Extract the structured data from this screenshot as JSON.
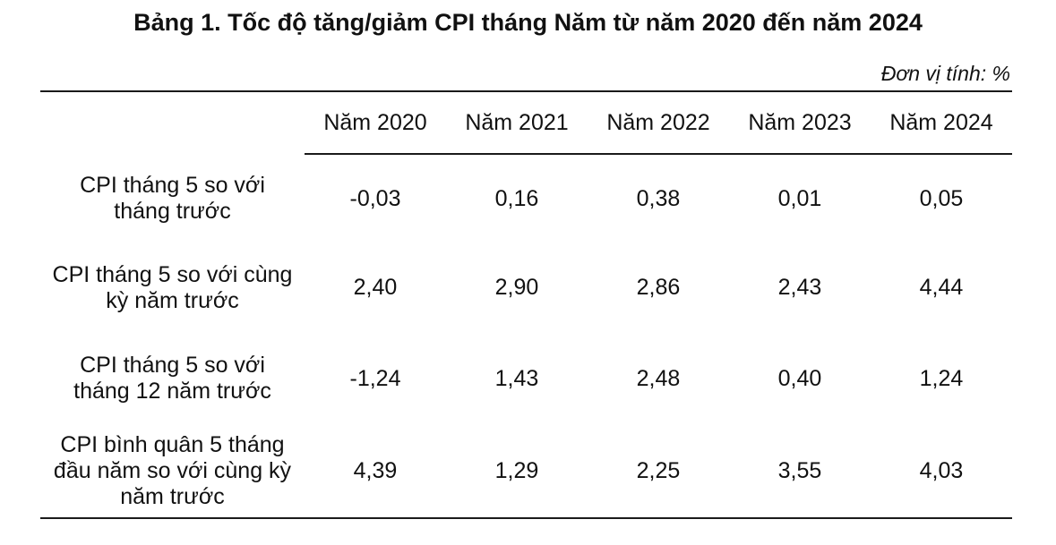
{
  "title": "Bảng 1. Tốc độ tăng/giảm CPI tháng Năm từ năm 2020 đến năm 2024",
  "unit_note": "Đơn vị tính: %",
  "colors": {
    "background": "#ffffff",
    "text": "#111111",
    "rule": "#1a1a1a"
  },
  "table": {
    "column_headers": [
      "Năm 2020",
      "Năm 2021",
      "Năm 2022",
      "Năm 2023",
      "Năm 2024"
    ],
    "rows": [
      {
        "label": "CPI tháng 5 so với tháng trước",
        "values": [
          "-0,03",
          "0,16",
          "0,38",
          "0,01",
          "0,05"
        ]
      },
      {
        "label": "CPI tháng 5 so với cùng kỳ năm trước",
        "values": [
          "2,40",
          "2,90",
          "2,86",
          "2,43",
          "4,44"
        ]
      },
      {
        "label": "CPI tháng 5 so với tháng 12 năm trước",
        "values": [
          "-1,24",
          "1,43",
          "2,48",
          "0,40",
          "1,24"
        ]
      },
      {
        "label": "CPI bình quân 5 tháng đầu năm so với cùng kỳ năm trước",
        "values": [
          "4,39",
          "1,29",
          "2,25",
          "3,55",
          "4,03"
        ]
      }
    ]
  },
  "chart_data": {
    "type": "table",
    "title": "Bảng 1. Tốc độ tăng/giảm CPI tháng Năm từ năm 2020 đến năm 2024",
    "unit": "%",
    "categories": [
      "Năm 2020",
      "Năm 2021",
      "Năm 2022",
      "Năm 2023",
      "Năm 2024"
    ],
    "series": [
      {
        "name": "CPI tháng 5 so với tháng trước",
        "values": [
          -0.03,
          0.16,
          0.38,
          0.01,
          0.05
        ]
      },
      {
        "name": "CPI tháng 5 so với cùng kỳ năm trước",
        "values": [
          2.4,
          2.9,
          2.86,
          2.43,
          4.44
        ]
      },
      {
        "name": "CPI tháng 5 so với tháng 12 năm trước",
        "values": [
          -1.24,
          1.43,
          2.48,
          0.4,
          1.24
        ]
      },
      {
        "name": "CPI bình quân 5 tháng đầu năm so với cùng kỳ năm trước",
        "values": [
          4.39,
          1.29,
          2.25,
          3.55,
          4.03
        ]
      }
    ]
  }
}
